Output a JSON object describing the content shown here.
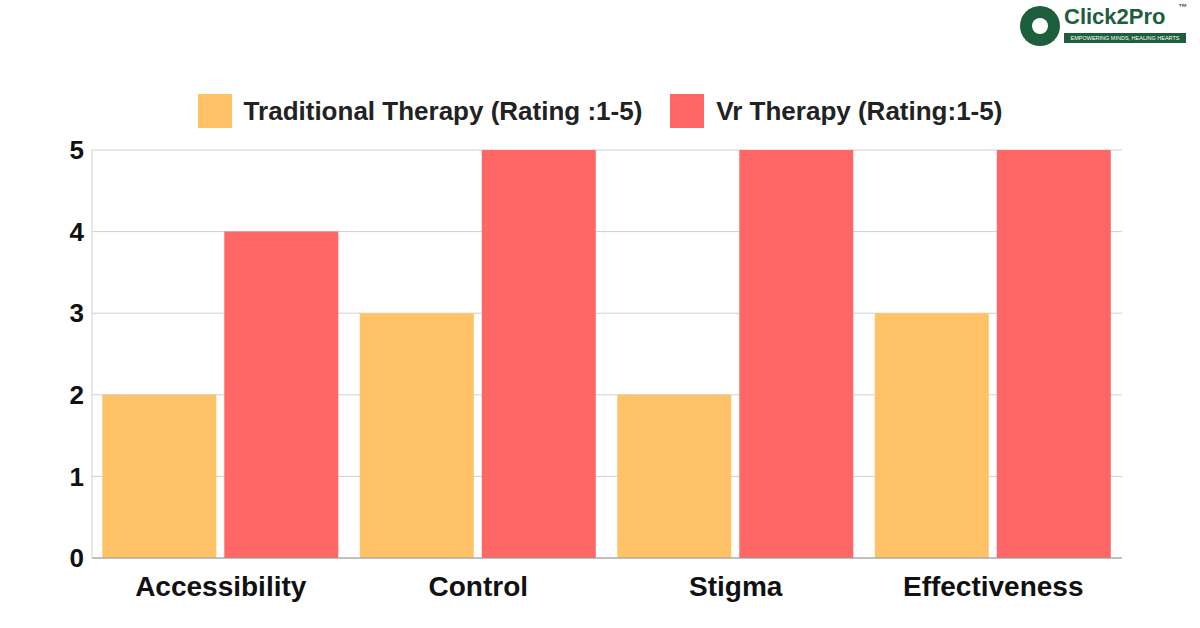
{
  "chart_data": {
    "type": "bar",
    "categories": [
      "Accessibility",
      "Control",
      "Stigma",
      "Effectiveness"
    ],
    "series": [
      {
        "name": "Traditional Therapy (Rating :1-5)",
        "color": "#FFC266",
        "values": [
          2,
          3,
          2,
          3
        ]
      },
      {
        "name": "Vr Therapy (Rating:1-5)",
        "color": "#FF6666",
        "values": [
          4,
          5,
          5,
          5
        ]
      }
    ],
    "ylim": [
      0,
      5
    ],
    "yticks": [
      0,
      1,
      2,
      3,
      4,
      5
    ],
    "grid": true,
    "legend": "top",
    "annotations": [
      "Click2Pro",
      "™",
      "EMPOWERING MINDS, HEALING HEARTS"
    ]
  }
}
